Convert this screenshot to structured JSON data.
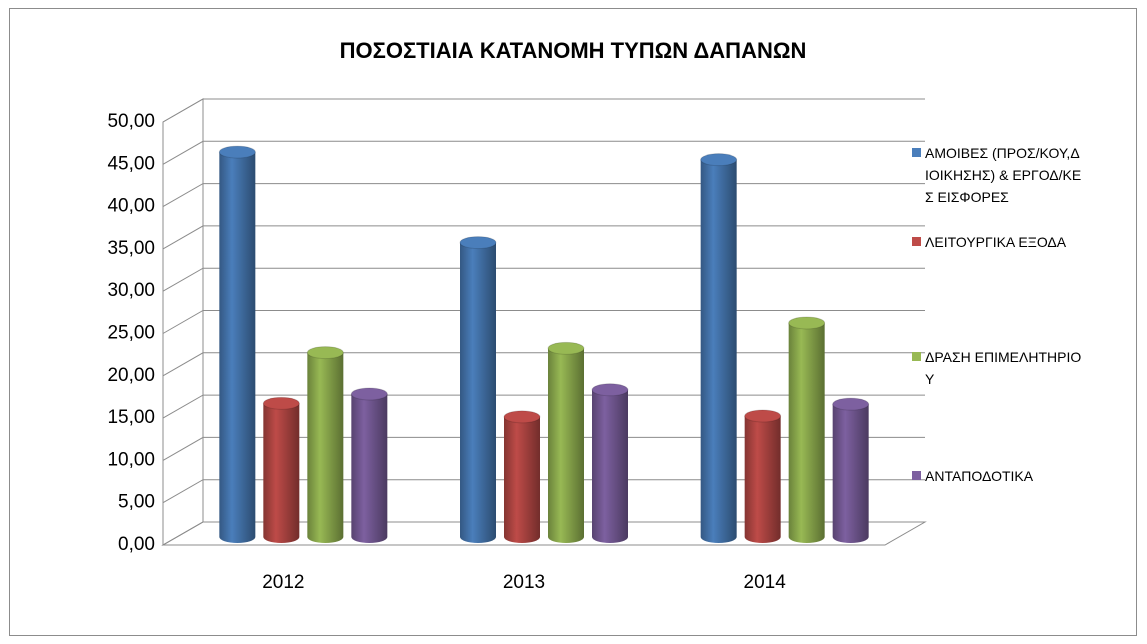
{
  "chart_data": {
    "type": "bar3d",
    "title": "ΠΟΣΟΣΤΙΑΙΑ ΚΑΤΑΝΟΜΗ ΤΥΠΩΝ ΔΑΠΑΝΩΝ",
    "categories": [
      "2012",
      "2013",
      "2014"
    ],
    "series": [
      {
        "name": "ΑΜΟΙΒΕΣ (ΠΡΟΣ/ΚΟΥ,ΔΙΟΙΚΗΣΗΣ) & ΕΡΓΟΔ/ΚΕΣ ΕΙΣΦΟΡΕΣ",
        "color": "#4a7ebb",
        "values": [
          45.5,
          34.8,
          44.6
        ]
      },
      {
        "name": "ΛΕΙΤΟΥΡΓΙΚΑ ΕΞΟΔΑ",
        "color": "#be4b48",
        "values": [
          15.8,
          14.2,
          14.3
        ]
      },
      {
        "name": "ΔΡΑΣΗ ΕΠΙΜΕΛΗΤΗΡΙΟΥ",
        "color": "#98b954",
        "values": [
          21.8,
          22.3,
          25.3
        ]
      },
      {
        "name": "ΑΝΤΑΠΟΔΟΤΙΚΑ",
        "color": "#7d60a0",
        "values": [
          16.9,
          17.4,
          15.7
        ]
      }
    ],
    "ylim": [
      0,
      50
    ],
    "yticks": [
      {
        "value": 0,
        "label": "0,00"
      },
      {
        "value": 5,
        "label": "5,00"
      },
      {
        "value": 10,
        "label": "10,00"
      },
      {
        "value": 15,
        "label": "15,00"
      },
      {
        "value": 20,
        "label": "20,00"
      },
      {
        "value": 25,
        "label": "25,00"
      },
      {
        "value": 30,
        "label": "30,00"
      },
      {
        "value": 35,
        "label": "35,00"
      },
      {
        "value": 40,
        "label": "40,00"
      },
      {
        "value": 45,
        "label": "45,00"
      },
      {
        "value": 50,
        "label": "50,00"
      }
    ],
    "grid": true,
    "legend": "right"
  }
}
